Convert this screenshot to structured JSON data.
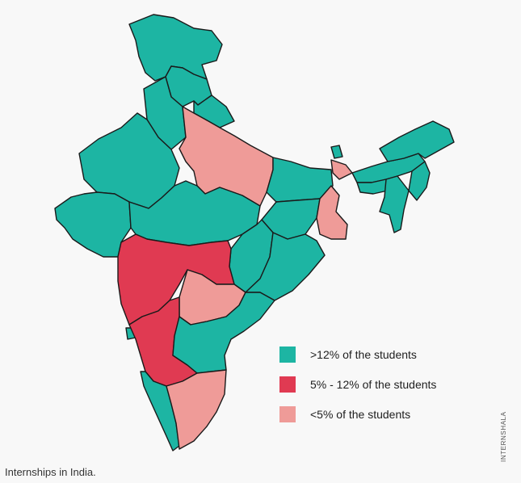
{
  "colors": {
    "high": "#1db5a3",
    "mid": "#e03a52",
    "low": "#ef9b98"
  },
  "legend": [
    {
      "label": ">12% of the students",
      "category": "high"
    },
    {
      "label": "5% - 12% of the students",
      "category": "mid"
    },
    {
      "label": "<5% of the students",
      "category": "low"
    }
  ],
  "caption": "Internships in India.",
  "credit": "INTERNSHALA"
}
